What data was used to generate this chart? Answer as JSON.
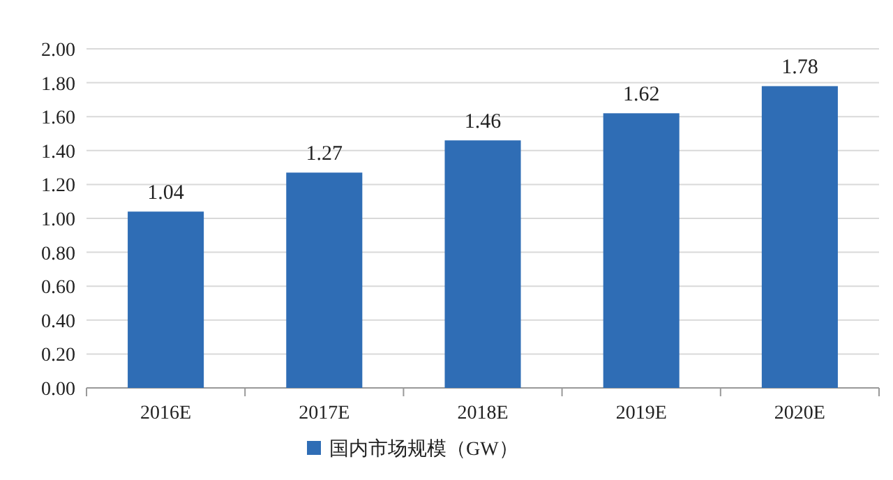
{
  "chart_data": {
    "type": "bar",
    "categories": [
      "2016E",
      "2017E",
      "2018E",
      "2019E",
      "2020E"
    ],
    "series": [
      {
        "name": "国内市场规模（GW）",
        "color": "#2f6db5",
        "values": [
          1.04,
          1.27,
          1.46,
          1.62,
          1.78
        ]
      }
    ],
    "ylim": [
      0,
      2
    ],
    "yticks": [
      {
        "value": 0,
        "label": "0.00"
      },
      {
        "value": 0.2,
        "label": "0.20"
      },
      {
        "value": 0.4,
        "label": "0.40"
      },
      {
        "value": 0.6,
        "label": "0.60"
      },
      {
        "value": 0.8,
        "label": "0.80"
      },
      {
        "value": 1,
        "label": "1.00"
      },
      {
        "value": 1.2,
        "label": "1.20"
      },
      {
        "value": 1.4,
        "label": "1.40"
      },
      {
        "value": 1.6,
        "label": "1.60"
      },
      {
        "value": 1.8,
        "label": "1.80"
      },
      {
        "value": 2,
        "label": "2.00"
      }
    ],
    "grid": "y",
    "legend": "bottom",
    "data_labels": true
  }
}
